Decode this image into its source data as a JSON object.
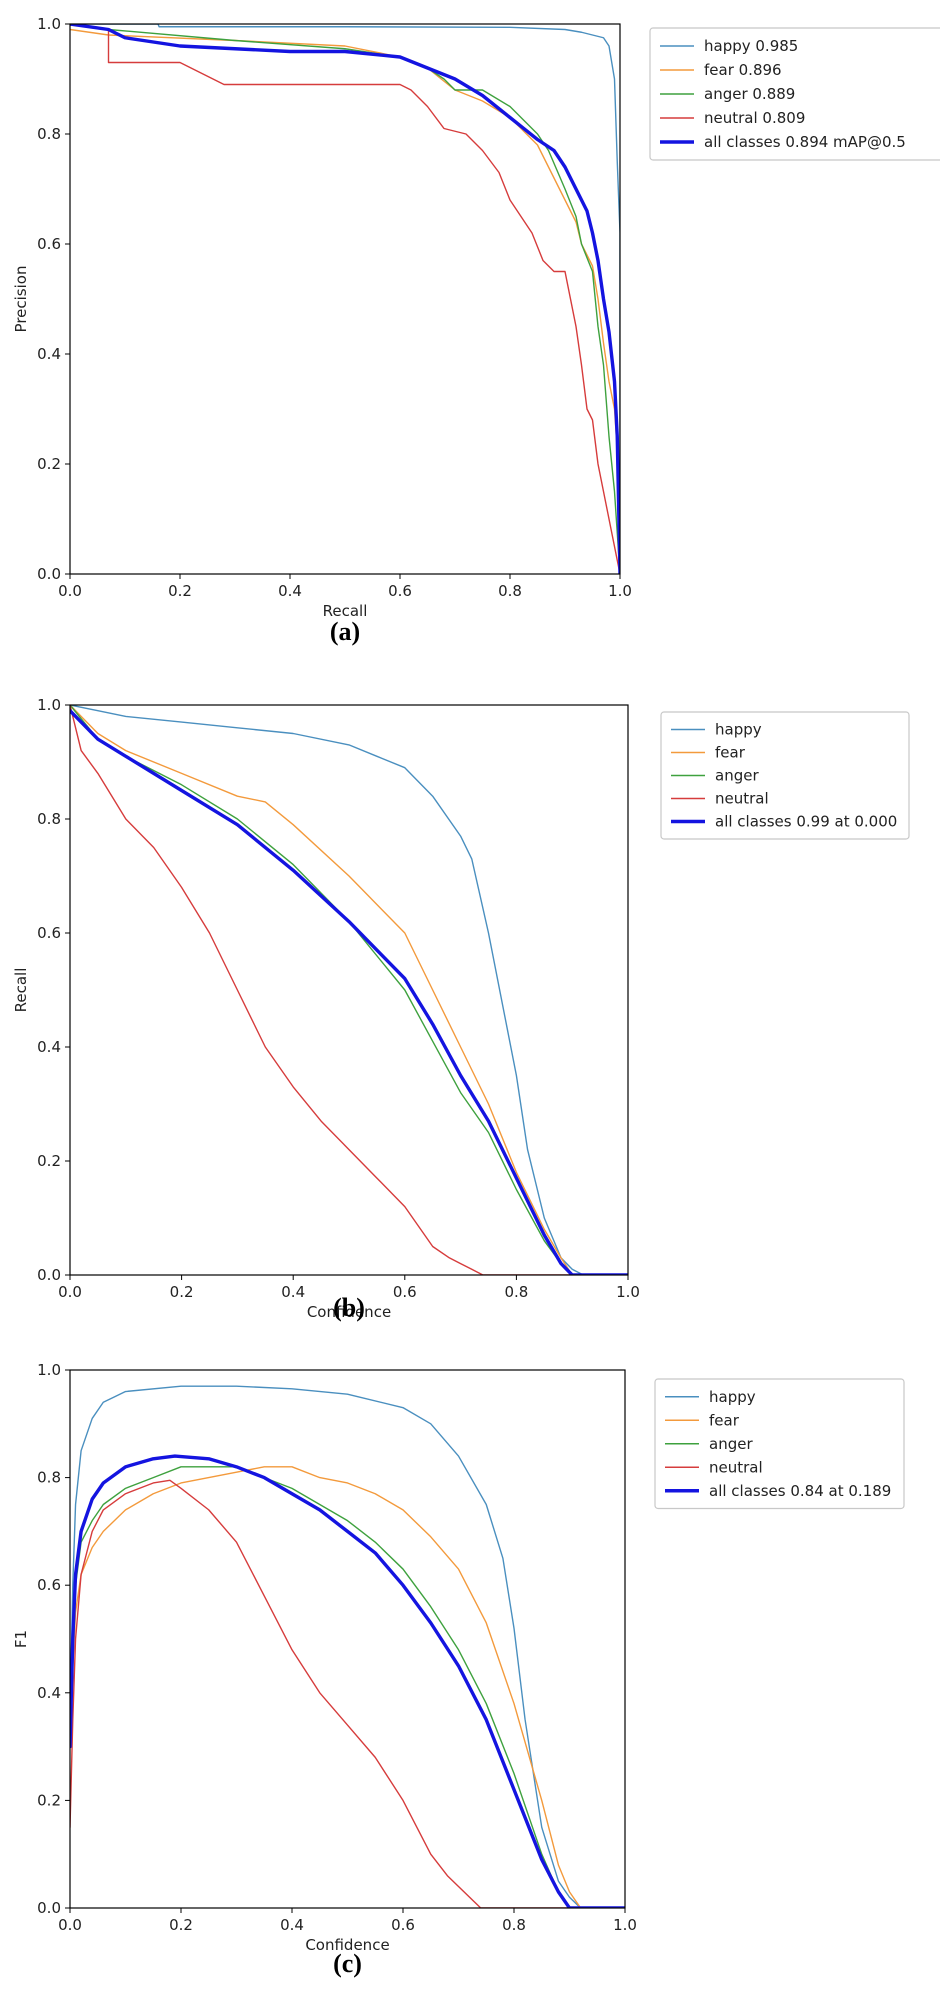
{
  "chart_data": [
    {
      "type": "line",
      "panel_label": "(a)",
      "xlabel": "Recall",
      "ylabel": "Precision",
      "xlim": [
        0,
        1
      ],
      "ylim": [
        0,
        1
      ],
      "xticks": [
        "0.0",
        "0.2",
        "0.4",
        "0.6",
        "0.8",
        "1.0"
      ],
      "yticks": [
        "0.0",
        "0.2",
        "0.4",
        "0.6",
        "0.8",
        "1.0"
      ],
      "grid": false,
      "legend_position": "outside-right-top",
      "series": [
        {
          "legend": "happy 0.985",
          "color": "#4a8fbf",
          "width": 1.4,
          "x": [
            0,
            0.16,
            0.162,
            0.5,
            0.8,
            0.9,
            0.93,
            0.95,
            0.97,
            0.98,
            0.99,
            0.995,
            1.0,
            1.0
          ],
          "y": [
            1.0,
            1.0,
            0.995,
            0.995,
            0.994,
            0.99,
            0.985,
            0.98,
            0.975,
            0.96,
            0.9,
            0.75,
            0.62,
            0.0
          ]
        },
        {
          "legend": "fear 0.896",
          "color": "#f39a3c",
          "width": 1.4,
          "x": [
            0,
            0.07,
            0.3,
            0.5,
            0.6,
            0.65,
            0.7,
            0.75,
            0.8,
            0.85,
            0.87,
            0.9,
            0.92,
            0.93,
            0.95,
            0.96,
            0.97,
            0.98,
            0.99,
            1.0,
            1.0
          ],
          "y": [
            0.99,
            0.98,
            0.97,
            0.96,
            0.94,
            0.92,
            0.88,
            0.86,
            0.83,
            0.78,
            0.74,
            0.68,
            0.64,
            0.6,
            0.56,
            0.5,
            0.42,
            0.35,
            0.3,
            0.15,
            0.0
          ]
        },
        {
          "legend": "anger 0.889",
          "color": "#3ea13e",
          "width": 1.4,
          "x": [
            0,
            0.07,
            0.3,
            0.5,
            0.6,
            0.65,
            0.68,
            0.7,
            0.75,
            0.8,
            0.85,
            0.87,
            0.9,
            0.92,
            0.93,
            0.95,
            0.96,
            0.97,
            0.98,
            0.99,
            1.0
          ],
          "y": [
            1.0,
            0.99,
            0.97,
            0.955,
            0.94,
            0.92,
            0.9,
            0.88,
            0.88,
            0.85,
            0.8,
            0.77,
            0.7,
            0.65,
            0.6,
            0.55,
            0.45,
            0.38,
            0.25,
            0.15,
            0.0
          ]
        },
        {
          "legend": "neutral 0.809",
          "color": "#d63c3c",
          "width": 1.4,
          "x": [
            0,
            0.07,
            0.07,
            0.2,
            0.28,
            0.6,
            0.62,
            0.65,
            0.68,
            0.72,
            0.75,
            0.78,
            0.8,
            0.84,
            0.86,
            0.88,
            0.9,
            0.91,
            0.92,
            0.93,
            0.94,
            0.95,
            0.96,
            0.97,
            0.98,
            0.99,
            1.0
          ],
          "y": [
            1.0,
            0.99,
            0.93,
            0.93,
            0.89,
            0.89,
            0.88,
            0.85,
            0.81,
            0.8,
            0.77,
            0.73,
            0.68,
            0.62,
            0.57,
            0.55,
            0.55,
            0.5,
            0.45,
            0.38,
            0.3,
            0.28,
            0.2,
            0.15,
            0.1,
            0.05,
            0.0
          ]
        },
        {
          "legend": "all classes 0.894 mAP@0.5",
          "color": "#1414e0",
          "width": 3.4,
          "x": [
            0,
            0.07,
            0.1,
            0.2,
            0.3,
            0.4,
            0.5,
            0.6,
            0.65,
            0.7,
            0.75,
            0.8,
            0.85,
            0.88,
            0.9,
            0.92,
            0.94,
            0.95,
            0.96,
            0.97,
            0.98,
            0.99,
            0.995,
            1.0
          ],
          "y": [
            1.0,
            0.99,
            0.975,
            0.96,
            0.955,
            0.95,
            0.95,
            0.94,
            0.92,
            0.9,
            0.87,
            0.83,
            0.79,
            0.77,
            0.74,
            0.7,
            0.66,
            0.62,
            0.57,
            0.5,
            0.44,
            0.35,
            0.25,
            0.0
          ]
        }
      ]
    },
    {
      "type": "line",
      "panel_label": "(b)",
      "xlabel": "Confidence",
      "ylabel": "Recall",
      "xlim": [
        0,
        1
      ],
      "ylim": [
        0,
        1
      ],
      "xticks": [
        "0.0",
        "0.2",
        "0.4",
        "0.6",
        "0.8",
        "1.0"
      ],
      "yticks": [
        "0.0",
        "0.2",
        "0.4",
        "0.6",
        "0.8",
        "1.0"
      ],
      "grid": false,
      "legend_position": "outside-right-top",
      "series": [
        {
          "legend": "happy",
          "color": "#4a8fbf",
          "width": 1.4,
          "x": [
            0,
            0.05,
            0.1,
            0.2,
            0.3,
            0.4,
            0.5,
            0.55,
            0.6,
            0.65,
            0.7,
            0.72,
            0.75,
            0.78,
            0.8,
            0.82,
            0.85,
            0.88,
            0.9,
            0.92,
            1.0
          ],
          "y": [
            1.0,
            0.99,
            0.98,
            0.97,
            0.96,
            0.95,
            0.93,
            0.91,
            0.89,
            0.84,
            0.77,
            0.73,
            0.6,
            0.45,
            0.35,
            0.22,
            0.1,
            0.03,
            0.01,
            0.0,
            0.0
          ]
        },
        {
          "legend": "fear",
          "color": "#f39a3c",
          "width": 1.4,
          "x": [
            0,
            0.05,
            0.1,
            0.2,
            0.3,
            0.35,
            0.4,
            0.5,
            0.6,
            0.65,
            0.7,
            0.75,
            0.8,
            0.85,
            0.88,
            0.9,
            1.0
          ],
          "y": [
            1.0,
            0.95,
            0.92,
            0.88,
            0.84,
            0.83,
            0.79,
            0.7,
            0.6,
            0.5,
            0.4,
            0.3,
            0.18,
            0.08,
            0.03,
            0.0,
            0.0
          ]
        },
        {
          "legend": "anger",
          "color": "#3ea13e",
          "width": 1.4,
          "x": [
            0,
            0.05,
            0.1,
            0.2,
            0.3,
            0.4,
            0.5,
            0.6,
            0.65,
            0.7,
            0.75,
            0.8,
            0.85,
            0.88,
            0.9,
            1.0
          ],
          "y": [
            1.0,
            0.94,
            0.91,
            0.86,
            0.8,
            0.72,
            0.62,
            0.5,
            0.41,
            0.32,
            0.25,
            0.15,
            0.06,
            0.02,
            0.0,
            0.0
          ]
        },
        {
          "legend": "neutral",
          "color": "#d63c3c",
          "width": 1.4,
          "x": [
            0,
            0.02,
            0.05,
            0.1,
            0.15,
            0.2,
            0.25,
            0.3,
            0.35,
            0.4,
            0.45,
            0.5,
            0.55,
            0.6,
            0.65,
            0.68,
            0.7,
            0.72,
            0.74,
            0.75,
            1.0
          ],
          "y": [
            1.0,
            0.92,
            0.88,
            0.8,
            0.75,
            0.68,
            0.6,
            0.5,
            0.4,
            0.33,
            0.27,
            0.22,
            0.17,
            0.12,
            0.05,
            0.03,
            0.02,
            0.01,
            0.0,
            0.0,
            0.0
          ]
        },
        {
          "legend": "all classes 0.99 at 0.000",
          "color": "#1414e0",
          "width": 3.4,
          "x": [
            0,
            0.05,
            0.1,
            0.2,
            0.3,
            0.4,
            0.5,
            0.6,
            0.65,
            0.7,
            0.75,
            0.8,
            0.85,
            0.88,
            0.9,
            0.92,
            1.0
          ],
          "y": [
            0.99,
            0.94,
            0.91,
            0.85,
            0.79,
            0.71,
            0.62,
            0.52,
            0.44,
            0.35,
            0.27,
            0.17,
            0.07,
            0.02,
            0.0,
            0.0,
            0.0
          ]
        }
      ]
    },
    {
      "type": "line",
      "panel_label": "(c)",
      "xlabel": "Confidence",
      "ylabel": "F1",
      "xlim": [
        0,
        1
      ],
      "ylim": [
        0,
        1
      ],
      "xticks": [
        "0.0",
        "0.2",
        "0.4",
        "0.6",
        "0.8",
        "1.0"
      ],
      "yticks": [
        "0.0",
        "0.2",
        "0.4",
        "0.6",
        "0.8",
        "1.0"
      ],
      "grid": false,
      "legend_position": "outside-right-top",
      "series": [
        {
          "legend": "happy",
          "color": "#4a8fbf",
          "width": 1.4,
          "x": [
            0,
            0.005,
            0.01,
            0.02,
            0.04,
            0.06,
            0.1,
            0.2,
            0.3,
            0.4,
            0.5,
            0.6,
            0.65,
            0.7,
            0.75,
            0.78,
            0.8,
            0.82,
            0.85,
            0.88,
            0.9,
            0.92,
            1.0
          ],
          "y": [
            0.35,
            0.6,
            0.75,
            0.85,
            0.91,
            0.94,
            0.96,
            0.97,
            0.97,
            0.965,
            0.955,
            0.93,
            0.9,
            0.84,
            0.75,
            0.65,
            0.52,
            0.35,
            0.15,
            0.05,
            0.02,
            0.0,
            0.0
          ]
        },
        {
          "legend": "fear",
          "color": "#f39a3c",
          "width": 1.4,
          "x": [
            0,
            0.005,
            0.01,
            0.02,
            0.04,
            0.06,
            0.1,
            0.15,
            0.2,
            0.3,
            0.35,
            0.4,
            0.45,
            0.5,
            0.55,
            0.6,
            0.65,
            0.7,
            0.75,
            0.8,
            0.85,
            0.88,
            0.9,
            0.92,
            1.0
          ],
          "y": [
            0.3,
            0.45,
            0.55,
            0.62,
            0.67,
            0.7,
            0.74,
            0.77,
            0.79,
            0.81,
            0.82,
            0.82,
            0.8,
            0.79,
            0.77,
            0.74,
            0.69,
            0.63,
            0.53,
            0.38,
            0.2,
            0.08,
            0.03,
            0.0,
            0.0
          ]
        },
        {
          "legend": "anger",
          "color": "#3ea13e",
          "width": 1.4,
          "x": [
            0,
            0.005,
            0.01,
            0.02,
            0.04,
            0.06,
            0.1,
            0.15,
            0.2,
            0.25,
            0.3,
            0.35,
            0.4,
            0.45,
            0.5,
            0.55,
            0.6,
            0.65,
            0.7,
            0.75,
            0.8,
            0.85,
            0.88,
            0.9,
            1.0
          ],
          "y": [
            0.35,
            0.5,
            0.6,
            0.68,
            0.72,
            0.75,
            0.78,
            0.8,
            0.82,
            0.82,
            0.82,
            0.8,
            0.78,
            0.75,
            0.72,
            0.68,
            0.63,
            0.56,
            0.48,
            0.38,
            0.25,
            0.1,
            0.03,
            0.0,
            0.0
          ]
        },
        {
          "legend": "neutral",
          "color": "#d63c3c",
          "width": 1.4,
          "x": [
            0,
            0.005,
            0.01,
            0.02,
            0.04,
            0.06,
            0.1,
            0.15,
            0.18,
            0.2,
            0.25,
            0.3,
            0.35,
            0.4,
            0.45,
            0.5,
            0.55,
            0.6,
            0.65,
            0.68,
            0.7,
            0.72,
            0.74,
            0.75,
            1.0
          ],
          "y": [
            0.15,
            0.35,
            0.5,
            0.62,
            0.7,
            0.74,
            0.77,
            0.79,
            0.795,
            0.78,
            0.74,
            0.68,
            0.58,
            0.48,
            0.4,
            0.34,
            0.28,
            0.2,
            0.1,
            0.06,
            0.04,
            0.02,
            0.0,
            0.0,
            0.0
          ]
        },
        {
          "legend": "all classes 0.84 at 0.189",
          "color": "#1414e0",
          "width": 3.4,
          "x": [
            0,
            0.005,
            0.01,
            0.02,
            0.04,
            0.06,
            0.1,
            0.15,
            0.189,
            0.25,
            0.3,
            0.35,
            0.4,
            0.45,
            0.5,
            0.55,
            0.6,
            0.65,
            0.7,
            0.75,
            0.8,
            0.85,
            0.88,
            0.9,
            0.92,
            1.0
          ],
          "y": [
            0.3,
            0.5,
            0.62,
            0.7,
            0.76,
            0.79,
            0.82,
            0.835,
            0.84,
            0.835,
            0.82,
            0.8,
            0.77,
            0.74,
            0.7,
            0.66,
            0.6,
            0.53,
            0.45,
            0.35,
            0.22,
            0.09,
            0.03,
            0.0,
            0.0,
            0.0
          ]
        }
      ]
    }
  ]
}
